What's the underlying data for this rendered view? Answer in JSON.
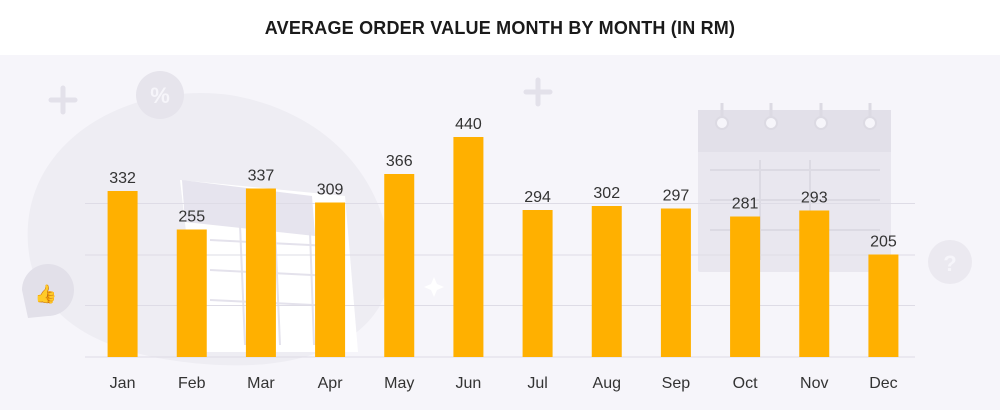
{
  "chart_data": {
    "type": "bar",
    "title": "AVERAGE ORDER VALUE MONTH BY MONTH (IN RM)",
    "categories": [
      "Jan",
      "Feb",
      "Mar",
      "Apr",
      "May",
      "Jun",
      "Jul",
      "Aug",
      "Sep",
      "Oct",
      "Nov",
      "Dec"
    ],
    "values": [
      332,
      255,
      337,
      309,
      366,
      440,
      294,
      302,
      297,
      281,
      293,
      205
    ],
    "ylim": [
      0,
      500
    ],
    "grid": true,
    "bar_color": "#ffb000",
    "grid_color": "#dedce6"
  },
  "colors": {
    "background": "#f6f5fa",
    "decoration": "#e9e7ef"
  }
}
